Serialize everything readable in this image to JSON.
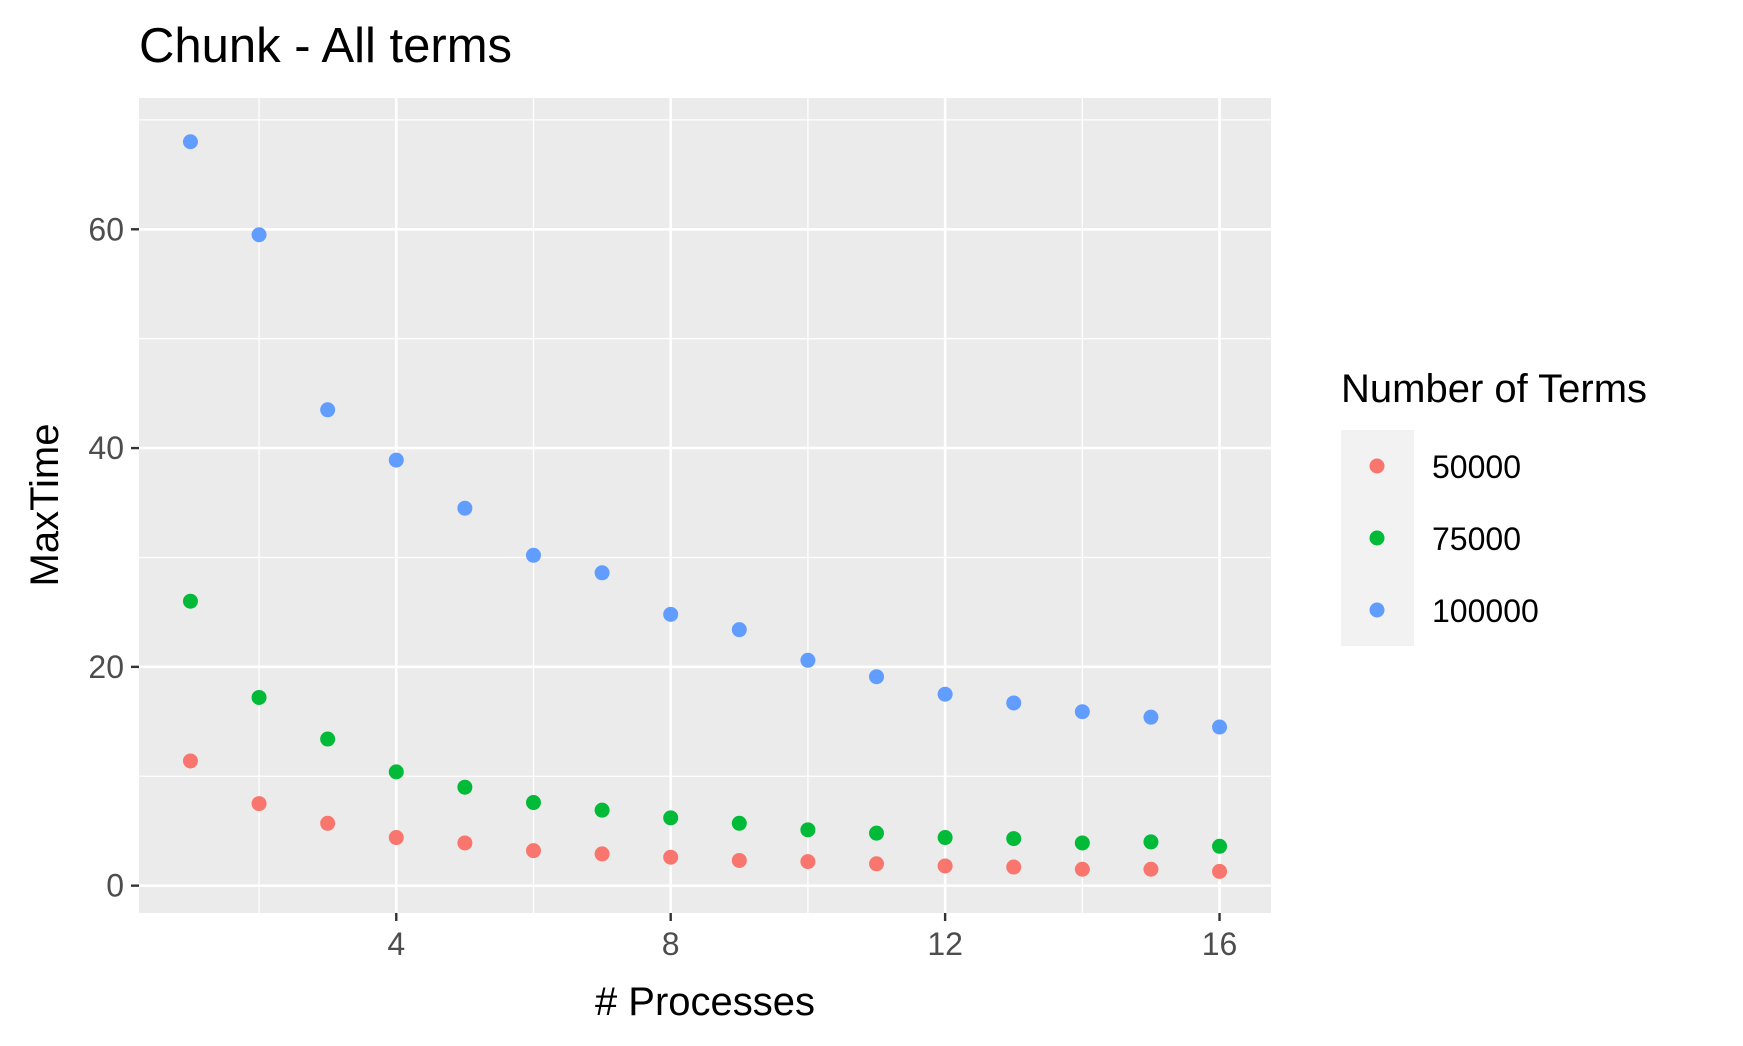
{
  "chart_data": {
    "type": "scatter",
    "title": "Chunk - All terms",
    "xlabel": "# Processes",
    "ylabel": "MaxTime",
    "xlim": [
      0.25,
      16.75
    ],
    "ylim": [
      -2.5,
      72
    ],
    "x_ticks": [
      4,
      8,
      12,
      16
    ],
    "x_minor_ticks": [
      2,
      6,
      10,
      14
    ],
    "y_ticks": [
      0,
      20,
      40,
      60
    ],
    "y_minor_ticks": [
      10,
      30,
      50,
      70
    ],
    "grid": true,
    "legend": {
      "title": "Number of Terms",
      "position": "right"
    },
    "x": [
      1,
      2,
      3,
      4,
      5,
      6,
      7,
      8,
      9,
      10,
      11,
      12,
      13,
      14,
      15,
      16
    ],
    "series": [
      {
        "name": "50000",
        "color": "#F8766D",
        "values": [
          11.4,
          7.5,
          5.7,
          4.4,
          3.9,
          3.2,
          2.9,
          2.6,
          2.3,
          2.2,
          2.0,
          1.8,
          1.7,
          1.5,
          1.5,
          1.3
        ]
      },
      {
        "name": "75000",
        "color": "#00BA38",
        "values": [
          26.0,
          17.2,
          13.4,
          10.4,
          9.0,
          7.6,
          6.9,
          6.2,
          5.7,
          5.1,
          4.8,
          4.4,
          4.3,
          3.9,
          4.0,
          3.6
        ]
      },
      {
        "name": "100000",
        "color": "#619CFF",
        "values": [
          68.0,
          59.5,
          43.5,
          38.9,
          34.5,
          30.2,
          28.6,
          24.8,
          23.4,
          20.6,
          19.1,
          17.5,
          16.7,
          15.9,
          15.4,
          14.5
        ]
      }
    ]
  }
}
